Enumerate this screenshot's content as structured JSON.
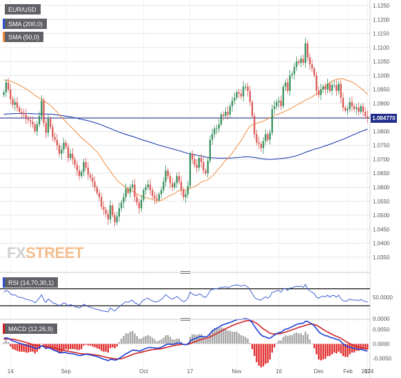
{
  "legend": {
    "symbol": "EUR/USD",
    "sma200": "SMA (200,0)",
    "sma50": "SMA (50,0)",
    "rsi": "RSI (14,70,30,1)",
    "macd": "MACD (12,26,9)"
  },
  "watermark": {
    "fx": "FX",
    "street": "STREET"
  },
  "price_label": "1.084770",
  "colors": {
    "up": "#2e8b57",
    "down": "#d9534f",
    "sma200": "#1f3fb0",
    "sma50": "#f08a3c",
    "rsi": "#2b4fd0",
    "macd": "#1a3fd6",
    "signal": "#d02020",
    "hist_up": "#a0a0a0",
    "hist_down": "#e02020",
    "grid": "#e6e6e6",
    "price_line": "#1f2a8a"
  },
  "chart_data": [
    {
      "type": "candlestick",
      "title": "EUR/USD",
      "y_ticks": [
        "1.1250",
        "1.1200",
        "1.1150",
        "1.1100",
        "1.1050",
        "1.1000",
        "1.0950",
        "1.0900",
        "1.0850",
        "1.0800",
        "1.0750",
        "1.0700",
        "1.0650",
        "1.0600",
        "1.0550",
        "1.0500",
        "1.0450",
        "1.0400",
        "1.0350"
      ],
      "ylim": [
        1.032,
        1.126
      ],
      "x_ticks": [
        "14",
        "Sep",
        "Oct",
        "17",
        "Nov",
        "16",
        "Dec",
        "2024",
        "17",
        "Feb"
      ],
      "last_price": 1.08477,
      "close": [
        1.094,
        1.0975,
        1.095,
        1.0915,
        1.0895,
        1.0905,
        1.0885,
        1.087,
        1.0865,
        1.086,
        1.0845,
        1.084,
        1.0835,
        1.0825,
        1.08,
        1.0825,
        1.0855,
        1.091,
        1.083,
        1.0795,
        1.0845,
        1.0815,
        1.078,
        1.077,
        1.075,
        1.072,
        1.0735,
        1.076,
        1.0745,
        1.0705,
        1.072,
        1.07,
        1.068,
        1.066,
        1.064,
        1.0655,
        1.069,
        1.067,
        1.0645,
        1.0635,
        1.062,
        1.06,
        1.058,
        1.0565,
        1.053,
        1.052,
        1.0505,
        1.0485,
        1.0535,
        1.05,
        1.0475,
        1.0495,
        1.0525,
        1.0545,
        1.0565,
        1.0595,
        1.058,
        1.06,
        1.061,
        1.0565,
        1.0545,
        1.0525,
        1.0555,
        1.059,
        1.06,
        1.061,
        1.059,
        1.057,
        1.056,
        1.0555,
        1.0575,
        1.059,
        1.062,
        1.066,
        1.064,
        1.0615,
        1.06,
        1.0615,
        1.064,
        1.062,
        1.059,
        1.0565,
        1.0575,
        1.0605,
        1.072,
        1.07,
        1.068,
        1.067,
        1.0705,
        1.069,
        1.066,
        1.065,
        1.0695,
        1.077,
        1.079,
        1.081,
        1.081,
        1.0825,
        1.086,
        1.0855,
        1.087,
        1.086,
        1.089,
        1.091,
        1.092,
        1.094,
        1.0935,
        1.0925,
        1.096,
        1.096,
        1.0945,
        1.0905,
        1.0855,
        1.079,
        1.076,
        1.0755,
        1.074,
        1.0765,
        1.079,
        1.077,
        1.0795,
        1.088,
        1.089,
        1.0905,
        1.091,
        1.089,
        1.096,
        1.0975,
        1.0945,
        1.1,
        1.1005,
        1.103,
        1.105,
        1.1045,
        1.106,
        1.1045,
        1.1115,
        1.1065,
        1.104,
        1.1025,
        1.1,
        1.0945,
        1.093,
        1.095,
        1.096,
        1.095,
        1.097,
        1.0945,
        1.0965,
        1.0965,
        1.0945,
        1.097,
        1.092,
        1.0885,
        1.0875,
        1.088,
        1.0905,
        1.089,
        1.088,
        1.0885,
        1.087,
        1.089,
        1.087,
        1.0855,
        1.0848
      ]
    },
    {
      "type": "line",
      "title": "RSI (14,70,30,1)",
      "y_ticks": [
        "50.0000",
        "0.0000"
      ],
      "ylim": [
        0,
        100
      ],
      "levels": [
        70,
        30
      ],
      "values": [
        62,
        66,
        64,
        58,
        55,
        56,
        52,
        50,
        49,
        48,
        45,
        44,
        43,
        41,
        37,
        42,
        48,
        56,
        44,
        38,
        46,
        42,
        37,
        36,
        33,
        30,
        33,
        37,
        35,
        30,
        33,
        31,
        28,
        27,
        25,
        28,
        34,
        31,
        28,
        27,
        25,
        23,
        22,
        21,
        18,
        18,
        17,
        16,
        25,
        21,
        18,
        23,
        28,
        32,
        36,
        40,
        38,
        42,
        43,
        37,
        35,
        32,
        38,
        44,
        46,
        48,
        44,
        41,
        40,
        39,
        42,
        45,
        50,
        56,
        52,
        48,
        46,
        48,
        52,
        48,
        43,
        40,
        42,
        48,
        62,
        58,
        55,
        54,
        58,
        56,
        51,
        50,
        56,
        66,
        68,
        70,
        70,
        71,
        74,
        73,
        75,
        72,
        75,
        77,
        78,
        79,
        78,
        76,
        78,
        77,
        74,
        67,
        59,
        50,
        46,
        45,
        43,
        48,
        51,
        48,
        52,
        62,
        63,
        65,
        66,
        62,
        70,
        71,
        66,
        72,
        72,
        74,
        76,
        75,
        76,
        73,
        80,
        70,
        65,
        62,
        58,
        50,
        48,
        51,
        53,
        51,
        55,
        50,
        54,
        54,
        50,
        55,
        47,
        42,
        41,
        42,
        46,
        44,
        43,
        44,
        42,
        45,
        42,
        40,
        39
      ]
    },
    {
      "type": "line",
      "title": "MACD (12,26,9)",
      "y_ticks": [
        "0.0050",
        "0.0000",
        "-0.0050"
      ],
      "ylim": [
        -0.0075,
        0.0075
      ],
      "series": [
        {
          "values": [
            0.0018,
            0.0021,
            0.0019,
            0.0014,
            0.001,
            0.0008,
            0.0005,
            0.0002,
            0.0,
            -0.0002,
            -0.0005,
            -0.0007,
            -0.0009,
            -0.0011,
            -0.0015,
            -0.0015,
            -0.0013,
            -0.0007,
            -0.001,
            -0.0015,
            -0.0014,
            -0.0016,
            -0.002,
            -0.0023,
            -0.0026,
            -0.003,
            -0.0031,
            -0.003,
            -0.003,
            -0.0033,
            -0.0033,
            -0.0034,
            -0.0036,
            -0.0038,
            -0.004,
            -0.004,
            -0.0037,
            -0.0036,
            -0.0037,
            -0.0038,
            -0.004,
            -0.0042,
            -0.0044,
            -0.0046,
            -0.005,
            -0.0053,
            -0.0055,
            -0.0058,
            -0.0054,
            -0.0054,
            -0.0056,
            -0.0055,
            -0.005,
            -0.0045,
            -0.004,
            -0.0034,
            -0.0031,
            -0.0026,
            -0.0022,
            -0.0022,
            -0.0023,
            -0.0025,
            -0.0023,
            -0.0019,
            -0.0016,
            -0.0013,
            -0.0012,
            -0.0013,
            -0.0014,
            -0.0015,
            -0.0014,
            -0.0012,
            -0.0008,
            -0.0003,
            -0.0001,
            -0.0001,
            -0.0002,
            -0.0001,
            0.0002,
            0.0003,
            0.0001,
            -0.0002,
            -0.0003,
            -0.0001,
            0.0009,
            0.0015,
            0.0018,
            0.002,
            0.0024,
            0.0026,
            0.0025,
            0.0024,
            0.0027,
            0.0036,
            0.0044,
            0.005,
            0.0054,
            0.0058,
            0.0063,
            0.0066,
            0.0069,
            0.0071,
            0.0074,
            0.0077,
            0.008,
            0.0083,
            0.0084,
            0.0084,
            0.0086,
            0.0087,
            0.0086,
            0.0081,
            0.0073,
            0.0061,
            0.005,
            0.004,
            0.0031,
            0.0026,
            0.0024,
            0.002,
            0.0019,
            0.0025,
            0.003,
            0.0035,
            0.0039,
            0.004,
            0.0046,
            0.0051,
            0.0052,
            0.0056,
            0.0059,
            0.0063,
            0.0067,
            0.0069,
            0.0071,
            0.0071,
            0.0078,
            0.0077,
            0.0073,
            0.0068,
            0.0062,
            0.0052,
            0.0042,
            0.0036,
            0.0032,
            0.0028,
            0.0027,
            0.0023,
            0.0021,
            0.0019,
            0.0015,
            0.0014,
            0.0008,
            0.0,
            -0.0006,
            -0.001,
            -0.0011,
            -0.0013,
            -0.0016,
            -0.0017,
            -0.0019,
            -0.0019,
            -0.0021,
            -0.0023,
            -0.0025
          ]
        },
        {
          "values": [
            0.0016,
            0.0017,
            0.0017,
            0.0017,
            0.0016,
            0.0015,
            0.0013,
            0.0011,
            0.0009,
            0.0007,
            0.0005,
            0.0003,
            0.0,
            -0.0002,
            -0.0004,
            -0.0006,
            -0.0007,
            -0.0007,
            -0.0008,
            -0.0009,
            -0.001,
            -0.0011,
            -0.0013,
            -0.0015,
            -0.0017,
            -0.0019,
            -0.0021,
            -0.0023,
            -0.0024,
            -0.0026,
            -0.0027,
            -0.0028,
            -0.003,
            -0.0031,
            -0.0033,
            -0.0034,
            -0.0035,
            -0.0035,
            -0.0035,
            -0.0036,
            -0.0037,
            -0.0038,
            -0.0039,
            -0.004,
            -0.0042,
            -0.0044,
            -0.0046,
            -0.0048,
            -0.0049,
            -0.005,
            -0.0051,
            -0.0052,
            -0.0052,
            -0.0051,
            -0.0049,
            -0.0046,
            -0.0043,
            -0.004,
            -0.0037,
            -0.0034,
            -0.0032,
            -0.0031,
            -0.0029,
            -0.0027,
            -0.0025,
            -0.0023,
            -0.0021,
            -0.002,
            -0.0019,
            -0.0018,
            -0.0018,
            -0.0017,
            -0.0015,
            -0.0013,
            -0.0011,
            -0.0009,
            -0.0007,
            -0.0006,
            -0.0004,
            -0.0003,
            -0.0002,
            -0.0002,
            -0.0002,
            -0.0002,
            0.0001,
            0.0004,
            0.0007,
            0.001,
            0.0013,
            0.0015,
            0.0017,
            0.0019,
            0.0021,
            0.0024,
            0.0028,
            0.0032,
            0.0036,
            0.004,
            0.0044,
            0.0048,
            0.0052,
            0.0056,
            0.0059,
            0.0063,
            0.0066,
            0.0069,
            0.0072,
            0.0074,
            0.0077,
            0.0079,
            0.008,
            0.008,
            0.0079,
            0.0075,
            0.0071,
            0.0065,
            0.0058,
            0.0052,
            0.0047,
            0.0042,
            0.0037,
            0.0035,
            0.0034,
            0.0034,
            0.0035,
            0.0036,
            0.0038,
            0.0041,
            0.0043,
            0.0046,
            0.0049,
            0.0051,
            0.0054,
            0.0057,
            0.0059,
            0.0061,
            0.0064,
            0.0066,
            0.0068,
            0.0068,
            0.0067,
            0.0064,
            0.006,
            0.0055,
            0.005,
            0.0045,
            0.0041,
            0.0037,
            0.0033,
            0.0029,
            0.0026,
            0.0023,
            0.0019,
            0.0014,
            0.0009,
            0.0005,
            0.0001,
            -0.0003,
            -0.0006,
            -0.0009,
            -0.0011,
            -0.0013,
            -0.0015,
            -0.0017,
            -0.0019
          ]
        }
      ]
    }
  ]
}
